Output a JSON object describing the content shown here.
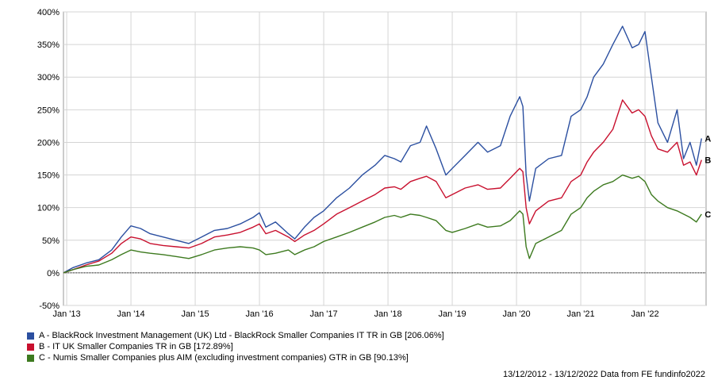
{
  "chart_data": {
    "type": "line",
    "ylim": [
      -50,
      400
    ],
    "y_ticks": [
      "-50%",
      "0%",
      "50%",
      "100%",
      "150%",
      "200%",
      "250%",
      "300%",
      "350%",
      "400%"
    ],
    "x_ticks": [
      {
        "label": "Jan '13",
        "x": 2013.0
      },
      {
        "label": "Jan '14",
        "x": 2014.0
      },
      {
        "label": "Jan '15",
        "x": 2015.0
      },
      {
        "label": "Jan '16",
        "x": 2016.0
      },
      {
        "label": "Jan '17",
        "x": 2017.0
      },
      {
        "label": "Jan '18",
        "x": 2018.0
      },
      {
        "label": "Jan '19",
        "x": 2019.0
      },
      {
        "label": "Jan '20",
        "x": 2020.0
      },
      {
        "label": "Jan '21",
        "x": 2021.0
      },
      {
        "label": "Jan '22",
        "x": 2022.0
      }
    ],
    "xlim": [
      2012.95,
      2022.95
    ],
    "grid": true,
    "series": [
      {
        "name": "A - BlackRock Investment Management (UK) Ltd - BlackRock Smaller Companies IT TR in GB [206.06%]",
        "end_label": "A",
        "color": "#2b4fa0",
        "points": [
          [
            2012.95,
            0
          ],
          [
            2013.1,
            8
          ],
          [
            2013.3,
            15
          ],
          [
            2013.5,
            20
          ],
          [
            2013.7,
            35
          ],
          [
            2013.85,
            55
          ],
          [
            2014.0,
            72
          ],
          [
            2014.15,
            68
          ],
          [
            2014.3,
            60
          ],
          [
            2014.5,
            55
          ],
          [
            2014.7,
            50
          ],
          [
            2014.9,
            45
          ],
          [
            2015.1,
            55
          ],
          [
            2015.3,
            65
          ],
          [
            2015.5,
            68
          ],
          [
            2015.7,
            75
          ],
          [
            2015.9,
            85
          ],
          [
            2016.0,
            92
          ],
          [
            2016.1,
            70
          ],
          [
            2016.25,
            78
          ],
          [
            2016.45,
            60
          ],
          [
            2016.55,
            52
          ],
          [
            2016.7,
            70
          ],
          [
            2016.85,
            85
          ],
          [
            2017.0,
            95
          ],
          [
            2017.2,
            115
          ],
          [
            2017.4,
            130
          ],
          [
            2017.6,
            150
          ],
          [
            2017.8,
            165
          ],
          [
            2017.95,
            180
          ],
          [
            2018.1,
            175
          ],
          [
            2018.2,
            170
          ],
          [
            2018.35,
            195
          ],
          [
            2018.5,
            200
          ],
          [
            2018.6,
            225
          ],
          [
            2018.75,
            190
          ],
          [
            2018.9,
            150
          ],
          [
            2019.0,
            160
          ],
          [
            2019.2,
            180
          ],
          [
            2019.4,
            200
          ],
          [
            2019.55,
            185
          ],
          [
            2019.75,
            195
          ],
          [
            2019.9,
            240
          ],
          [
            2020.05,
            270
          ],
          [
            2020.1,
            255
          ],
          [
            2020.15,
            150
          ],
          [
            2020.2,
            110
          ],
          [
            2020.3,
            160
          ],
          [
            2020.5,
            175
          ],
          [
            2020.7,
            180
          ],
          [
            2020.85,
            240
          ],
          [
            2021.0,
            250
          ],
          [
            2021.1,
            270
          ],
          [
            2021.2,
            300
          ],
          [
            2021.35,
            320
          ],
          [
            2021.5,
            350
          ],
          [
            2021.65,
            378
          ],
          [
            2021.8,
            345
          ],
          [
            2021.9,
            350
          ],
          [
            2022.0,
            370
          ],
          [
            2022.1,
            300
          ],
          [
            2022.2,
            230
          ],
          [
            2022.35,
            200
          ],
          [
            2022.5,
            250
          ],
          [
            2022.6,
            175
          ],
          [
            2022.7,
            200
          ],
          [
            2022.8,
            165
          ],
          [
            2022.88,
            206
          ]
        ]
      },
      {
        "name": "B - IT UK Smaller Companies TR in GB [172.89%]",
        "end_label": "B",
        "color": "#c8102e",
        "points": [
          [
            2012.95,
            0
          ],
          [
            2013.1,
            5
          ],
          [
            2013.3,
            12
          ],
          [
            2013.5,
            18
          ],
          [
            2013.7,
            30
          ],
          [
            2013.85,
            45
          ],
          [
            2014.0,
            55
          ],
          [
            2014.15,
            52
          ],
          [
            2014.3,
            45
          ],
          [
            2014.5,
            42
          ],
          [
            2014.7,
            40
          ],
          [
            2014.9,
            38
          ],
          [
            2015.1,
            45
          ],
          [
            2015.3,
            55
          ],
          [
            2015.5,
            58
          ],
          [
            2015.7,
            62
          ],
          [
            2015.9,
            70
          ],
          [
            2016.0,
            75
          ],
          [
            2016.1,
            60
          ],
          [
            2016.25,
            65
          ],
          [
            2016.45,
            55
          ],
          [
            2016.55,
            48
          ],
          [
            2016.7,
            58
          ],
          [
            2016.85,
            65
          ],
          [
            2017.0,
            75
          ],
          [
            2017.2,
            90
          ],
          [
            2017.4,
            100
          ],
          [
            2017.6,
            110
          ],
          [
            2017.8,
            120
          ],
          [
            2017.95,
            130
          ],
          [
            2018.1,
            132
          ],
          [
            2018.2,
            128
          ],
          [
            2018.35,
            140
          ],
          [
            2018.5,
            145
          ],
          [
            2018.6,
            148
          ],
          [
            2018.75,
            140
          ],
          [
            2018.9,
            115
          ],
          [
            2019.0,
            120
          ],
          [
            2019.2,
            130
          ],
          [
            2019.4,
            135
          ],
          [
            2019.55,
            128
          ],
          [
            2019.75,
            130
          ],
          [
            2019.9,
            145
          ],
          [
            2020.05,
            160
          ],
          [
            2020.1,
            155
          ],
          [
            2020.15,
            100
          ],
          [
            2020.2,
            75
          ],
          [
            2020.3,
            95
          ],
          [
            2020.5,
            110
          ],
          [
            2020.7,
            115
          ],
          [
            2020.85,
            140
          ],
          [
            2021.0,
            150
          ],
          [
            2021.1,
            170
          ],
          [
            2021.2,
            185
          ],
          [
            2021.35,
            200
          ],
          [
            2021.5,
            220
          ],
          [
            2021.65,
            265
          ],
          [
            2021.8,
            245
          ],
          [
            2021.9,
            250
          ],
          [
            2022.0,
            240
          ],
          [
            2022.1,
            210
          ],
          [
            2022.2,
            190
          ],
          [
            2022.35,
            185
          ],
          [
            2022.5,
            200
          ],
          [
            2022.6,
            165
          ],
          [
            2022.7,
            170
          ],
          [
            2022.8,
            150
          ],
          [
            2022.88,
            173
          ]
        ]
      },
      {
        "name": "C - Numis Smaller Companies plus AIM (excluding investment companies) GTR in GB [90.13%]",
        "end_label": "C",
        "color": "#3d7a1f",
        "points": [
          [
            2012.95,
            0
          ],
          [
            2013.1,
            5
          ],
          [
            2013.3,
            10
          ],
          [
            2013.5,
            12
          ],
          [
            2013.7,
            20
          ],
          [
            2013.85,
            28
          ],
          [
            2014.0,
            35
          ],
          [
            2014.15,
            32
          ],
          [
            2014.3,
            30
          ],
          [
            2014.5,
            28
          ],
          [
            2014.7,
            25
          ],
          [
            2014.9,
            22
          ],
          [
            2015.1,
            28
          ],
          [
            2015.3,
            35
          ],
          [
            2015.5,
            38
          ],
          [
            2015.7,
            40
          ],
          [
            2015.9,
            38
          ],
          [
            2016.0,
            35
          ],
          [
            2016.1,
            28
          ],
          [
            2016.25,
            30
          ],
          [
            2016.45,
            35
          ],
          [
            2016.55,
            28
          ],
          [
            2016.7,
            35
          ],
          [
            2016.85,
            40
          ],
          [
            2017.0,
            48
          ],
          [
            2017.2,
            55
          ],
          [
            2017.4,
            62
          ],
          [
            2017.6,
            70
          ],
          [
            2017.8,
            78
          ],
          [
            2017.95,
            85
          ],
          [
            2018.1,
            88
          ],
          [
            2018.2,
            85
          ],
          [
            2018.35,
            90
          ],
          [
            2018.5,
            88
          ],
          [
            2018.6,
            85
          ],
          [
            2018.75,
            80
          ],
          [
            2018.9,
            65
          ],
          [
            2019.0,
            62
          ],
          [
            2019.2,
            68
          ],
          [
            2019.4,
            75
          ],
          [
            2019.55,
            70
          ],
          [
            2019.75,
            72
          ],
          [
            2019.9,
            80
          ],
          [
            2020.05,
            95
          ],
          [
            2020.1,
            90
          ],
          [
            2020.15,
            40
          ],
          [
            2020.2,
            22
          ],
          [
            2020.3,
            45
          ],
          [
            2020.5,
            55
          ],
          [
            2020.7,
            65
          ],
          [
            2020.85,
            90
          ],
          [
            2021.0,
            100
          ],
          [
            2021.1,
            115
          ],
          [
            2021.2,
            125
          ],
          [
            2021.35,
            135
          ],
          [
            2021.5,
            140
          ],
          [
            2021.65,
            150
          ],
          [
            2021.8,
            145
          ],
          [
            2021.9,
            148
          ],
          [
            2022.0,
            140
          ],
          [
            2022.1,
            120
          ],
          [
            2022.2,
            110
          ],
          [
            2022.35,
            100
          ],
          [
            2022.5,
            95
          ],
          [
            2022.6,
            90
          ],
          [
            2022.7,
            85
          ],
          [
            2022.8,
            78
          ],
          [
            2022.88,
            90
          ]
        ]
      }
    ]
  },
  "footer": {
    "text": "13/12/2012 - 13/12/2022 Data from FE fundinfo2022"
  }
}
